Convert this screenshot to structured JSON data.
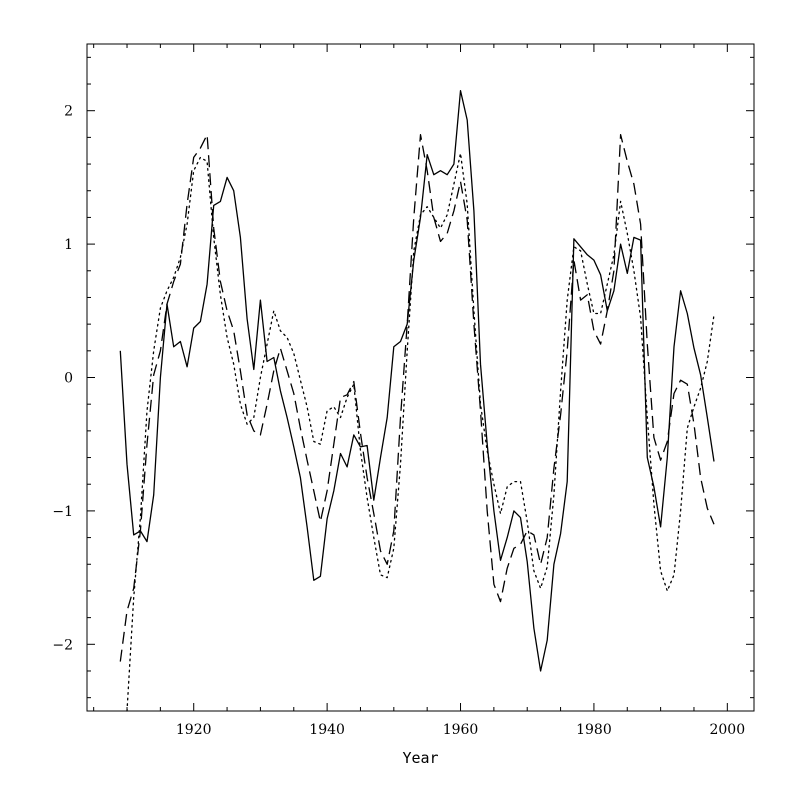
{
  "chart_data": {
    "type": "line",
    "title": "",
    "xlabel": "Year",
    "ylabel": "",
    "xlim": [
      1904,
      2004
    ],
    "ylim": [
      -2.5,
      2.5
    ],
    "xticks": [
      1920,
      1940,
      1960,
      1980,
      2000
    ],
    "yticks": [
      -2,
      -1,
      0,
      1,
      2
    ],
    "xtick_labels": [
      "1920",
      "1940",
      "1960",
      "1980",
      "2000"
    ],
    "ytick_labels": [
      "−2",
      "−1",
      "0",
      "1",
      "2"
    ],
    "grid": false,
    "legend": "none",
    "series": [
      {
        "style": "solid",
        "color": "#000000",
        "x": [
          1909,
          1910,
          1911,
          1912,
          1913,
          1914,
          1915,
          1916,
          1917,
          1918,
          1919,
          1920,
          1921,
          1922,
          1923,
          1924,
          1925,
          1926,
          1927,
          1928,
          1929,
          1930,
          1931,
          1932,
          1933,
          1934,
          1935,
          1936,
          1937,
          1938,
          1939,
          1940,
          1941,
          1942,
          1943,
          1944,
          1945,
          1946,
          1947,
          1948,
          1949,
          1950,
          1951,
          1952,
          1953,
          1954,
          1955,
          1956,
          1957,
          1958,
          1959,
          1960,
          1961,
          1962,
          1963,
          1964,
          1965,
          1966,
          1967,
          1968,
          1969,
          1970,
          1971,
          1972,
          1973,
          1974,
          1975,
          1976,
          1977,
          1978,
          1979,
          1980,
          1981,
          1982,
          1983,
          1984,
          1985,
          1986,
          1987,
          1988,
          1989,
          1990,
          1991,
          1992,
          1993,
          1994,
          1995,
          1996,
          1997,
          1998
        ],
        "values": [
          0.2,
          -0.65,
          -1.18,
          -1.15,
          -1.23,
          -0.88,
          0.0,
          0.55,
          0.23,
          0.27,
          0.08,
          0.37,
          0.42,
          0.7,
          1.29,
          1.32,
          1.5,
          1.4,
          1.05,
          0.44,
          0.06,
          0.58,
          0.12,
          0.15,
          -0.1,
          -0.3,
          -0.52,
          -0.75,
          -1.12,
          -1.52,
          -1.49,
          -1.06,
          -0.85,
          -0.57,
          -0.67,
          -0.43,
          -0.52,
          -0.51,
          -0.92,
          -0.6,
          -0.3,
          0.23,
          0.27,
          0.4,
          0.88,
          1.2,
          1.67,
          1.52,
          1.55,
          1.52,
          1.6,
          2.15,
          1.93,
          1.25,
          0.1,
          -0.5,
          -1.0,
          -1.37,
          -1.2,
          -1.0,
          -1.05,
          -1.38,
          -1.88,
          -2.2,
          -1.97,
          -1.4,
          -1.17,
          -0.78,
          1.04,
          0.98,
          0.92,
          0.88,
          0.77,
          0.5,
          0.65,
          1.0,
          0.78,
          1.05,
          1.03,
          -0.6,
          -0.82,
          -1.12,
          -0.6,
          0.23,
          0.65,
          0.48,
          0.22,
          0.02,
          -0.3,
          -0.63
        ]
      },
      {
        "style": "dashed",
        "color": "#000000",
        "x": [
          1909,
          1910,
          1911,
          1912,
          1913,
          1914,
          1915,
          1916,
          1917,
          1918,
          1919,
          1920,
          1921,
          1922,
          1923,
          1924,
          1925,
          1926,
          1927,
          1928,
          1929,
          1930,
          1931,
          1932,
          1933,
          1934,
          1935,
          1936,
          1937,
          1938,
          1939,
          1940,
          1941,
          1942,
          1943,
          1944,
          1945,
          1946,
          1947,
          1948,
          1949,
          1950,
          1951,
          1952,
          1953,
          1954,
          1955,
          1956,
          1957,
          1958,
          1959,
          1960,
          1961,
          1962,
          1963,
          1964,
          1965,
          1966,
          1967,
          1968,
          1969,
          1970,
          1971,
          1972,
          1973,
          1974,
          1975,
          1976,
          1977,
          1978,
          1979,
          1980,
          1981,
          1982,
          1983,
          1984,
          1985,
          1986,
          1987,
          1988,
          1989,
          1990,
          1991,
          1992,
          1993,
          1994,
          1995,
          1996,
          1997,
          1998
        ],
        "values": [
          -2.13,
          -1.75,
          -1.58,
          -1.15,
          -0.5,
          0.02,
          0.2,
          0.55,
          0.72,
          0.85,
          1.3,
          1.65,
          1.72,
          1.82,
          1.12,
          0.72,
          0.5,
          0.35,
          0.05,
          -0.28,
          -0.4,
          -0.43,
          -0.2,
          0.05,
          0.22,
          0.05,
          -0.12,
          -0.38,
          -0.62,
          -0.85,
          -1.08,
          -0.85,
          -0.5,
          -0.15,
          -0.13,
          -0.03,
          -0.42,
          -0.75,
          -1.02,
          -1.3,
          -1.4,
          -1.15,
          -0.3,
          0.4,
          1.2,
          1.82,
          1.55,
          1.2,
          1.02,
          1.08,
          1.25,
          1.47,
          1.18,
          0.4,
          -0.25,
          -1.0,
          -1.55,
          -1.68,
          -1.43,
          -1.28,
          -1.25,
          -1.15,
          -1.18,
          -1.4,
          -1.2,
          -0.68,
          -0.28,
          0.2,
          0.88,
          0.58,
          0.62,
          0.35,
          0.25,
          0.5,
          0.8,
          1.82,
          1.62,
          1.45,
          1.15,
          0.25,
          -0.45,
          -0.62,
          -0.48,
          -0.12,
          -0.02,
          -0.05,
          -0.35,
          -0.75,
          -0.98,
          -1.1
        ]
      },
      {
        "style": "dotted",
        "color": "#000000",
        "x": [
          1910,
          1911,
          1912,
          1913,
          1914,
          1915,
          1916,
          1917,
          1918,
          1919,
          1920,
          1921,
          1922,
          1923,
          1924,
          1925,
          1926,
          1927,
          1928,
          1929,
          1930,
          1931,
          1932,
          1933,
          1934,
          1935,
          1936,
          1937,
          1938,
          1939,
          1940,
          1941,
          1942,
          1943,
          1944,
          1945,
          1946,
          1947,
          1948,
          1949,
          1950,
          1951,
          1952,
          1953,
          1954,
          1955,
          1956,
          1957,
          1958,
          1959,
          1960,
          1961,
          1962,
          1963,
          1964,
          1965,
          1966,
          1967,
          1968,
          1969,
          1970,
          1971,
          1972,
          1973,
          1974,
          1975,
          1976,
          1977,
          1978,
          1979,
          1980,
          1981,
          1982,
          1983,
          1984,
          1985,
          1986,
          1987,
          1988,
          1989,
          1990,
          1991,
          1992,
          1993,
          1994,
          1995,
          1996,
          1997,
          1998
        ],
        "values": [
          -2.5,
          -1.65,
          -1.05,
          -0.25,
          0.2,
          0.52,
          0.65,
          0.75,
          0.9,
          1.15,
          1.55,
          1.65,
          1.62,
          1.05,
          0.62,
          0.3,
          0.1,
          -0.2,
          -0.35,
          -0.3,
          0.0,
          0.25,
          0.5,
          0.35,
          0.3,
          0.18,
          -0.02,
          -0.22,
          -0.48,
          -0.5,
          -0.25,
          -0.22,
          -0.3,
          -0.15,
          -0.05,
          -0.55,
          -0.9,
          -1.2,
          -1.48,
          -1.5,
          -1.28,
          -0.65,
          0.2,
          0.95,
          1.22,
          1.28,
          1.2,
          1.12,
          1.22,
          1.45,
          1.68,
          1.3,
          0.5,
          -0.2,
          -0.55,
          -0.8,
          -1.02,
          -0.82,
          -0.78,
          -0.78,
          -1.08,
          -1.45,
          -1.58,
          -1.42,
          -0.88,
          -0.1,
          0.58,
          0.98,
          0.95,
          0.7,
          0.48,
          0.48,
          0.7,
          0.92,
          1.32,
          1.08,
          0.8,
          0.45,
          -0.3,
          -0.95,
          -1.45,
          -1.6,
          -1.48,
          -1.0,
          -0.38,
          -0.22,
          -0.08,
          0.12,
          0.47
        ]
      }
    ]
  }
}
